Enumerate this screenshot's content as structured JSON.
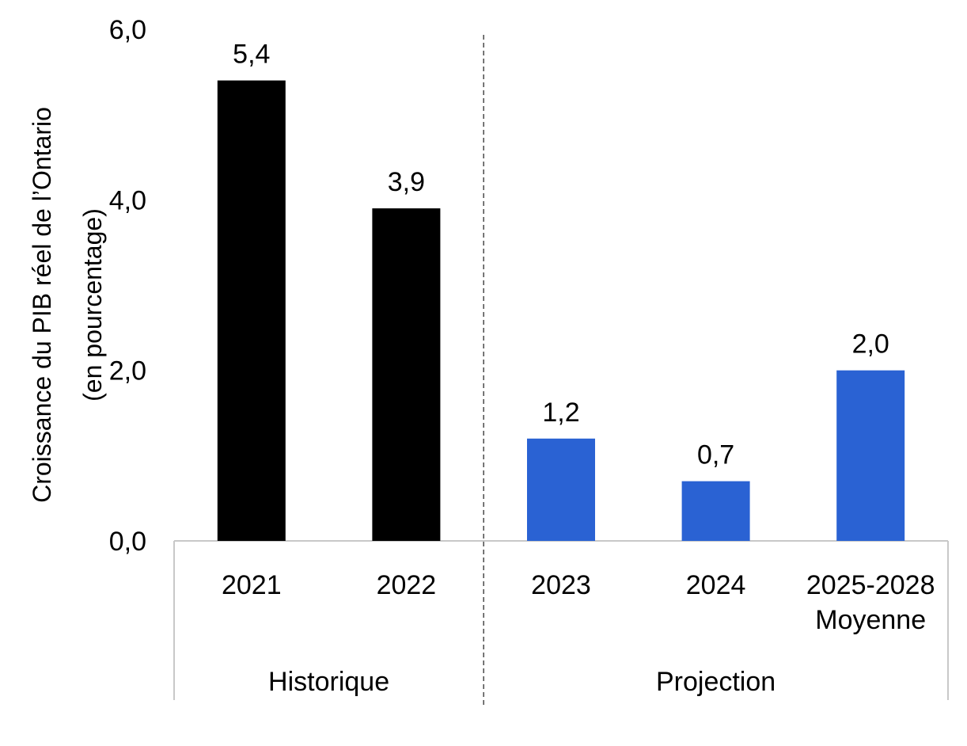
{
  "chart_data": {
    "type": "bar",
    "ylabel_lines": [
      "Croissance du PIB réel de l’Ontario",
      "(en pourcentage)"
    ],
    "ylim": [
      0,
      6
    ],
    "y_ticks": [
      "0,0",
      "2,0",
      "4,0",
      "6,0"
    ],
    "y_tick_values": [
      0,
      2,
      4,
      6
    ],
    "groups": [
      {
        "label": "Historique",
        "count": 2
      },
      {
        "label": "Projection",
        "count": 3
      }
    ],
    "categories": [
      [
        "2021"
      ],
      [
        "2022"
      ],
      [
        "2023"
      ],
      [
        "2024"
      ],
      [
        "2025-2028",
        "Moyenne"
      ]
    ],
    "values": [
      5.4,
      3.9,
      1.2,
      0.7,
      2.0
    ],
    "value_labels": [
      "5,4",
      "3,9",
      "1,2",
      "0,7",
      "2,0"
    ],
    "bar_colors": [
      "#000000",
      "#000000",
      "#2a62d3",
      "#2a62d3",
      "#2a62d3"
    ],
    "grid": false
  }
}
